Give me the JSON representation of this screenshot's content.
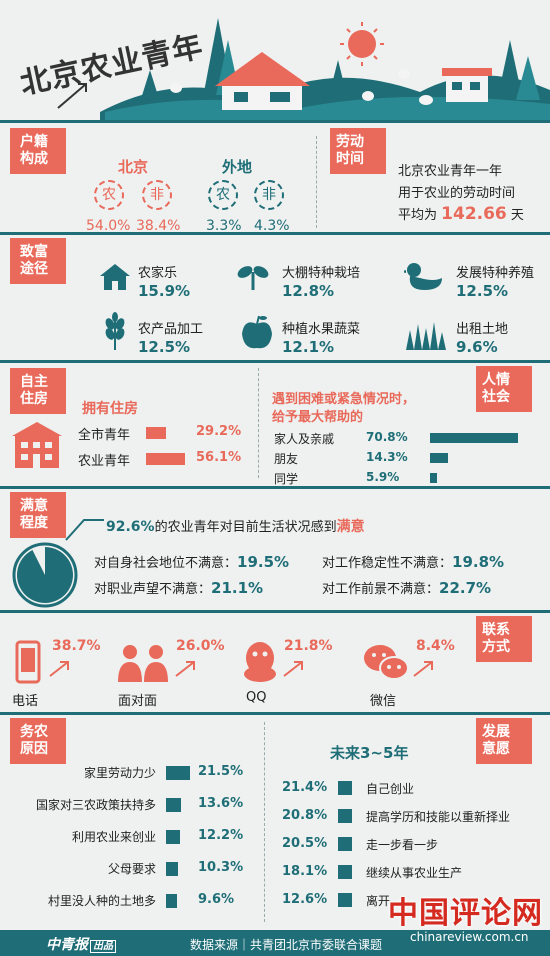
{
  "header": {
    "title": "北京农业青年"
  },
  "hukou": {
    "tag": "户籍\n构成",
    "beijing": {
      "label": "北京",
      "c1": "农",
      "c2": "非",
      "v1": "54.0%",
      "v2": "38.4%"
    },
    "waidi": {
      "label": "外地",
      "c1": "农",
      "c2": "非",
      "v1": "3.3%",
      "v2": "4.3%"
    }
  },
  "labor": {
    "tag": "劳动\n时间",
    "line1": "北京农业青年一年",
    "line2": "用于农业的劳动时间",
    "line3_pre": "平均为",
    "value": "142.66",
    "unit": "天"
  },
  "wealth": {
    "tag": "致富\n途径",
    "items": [
      {
        "label": "农家乐",
        "value": "15.9%"
      },
      {
        "label": "大棚特种栽培",
        "value": "12.8%"
      },
      {
        "label": "发展特种养殖",
        "value": "12.5%"
      },
      {
        "label": "农产品加工",
        "value": "12.5%"
      },
      {
        "label": "种植水果蔬菜",
        "value": "12.1%"
      },
      {
        "label": "出租土地",
        "value": "9.6%"
      }
    ]
  },
  "housing": {
    "tag": "自主\n住房",
    "title": "拥有住房",
    "rows": [
      {
        "label": "全市青年",
        "value": "29.2%",
        "frac": 0.292
      },
      {
        "label": "农业青年",
        "value": "56.1%",
        "frac": 0.561
      }
    ]
  },
  "social": {
    "tag": "人情\n社会",
    "title1": "遇到困难或紧急情况时，",
    "title2": "给予最大帮助的",
    "rows": [
      {
        "label": "家人及亲戚",
        "value": "70.8%",
        "frac": 0.708
      },
      {
        "label": "朋友",
        "value": "14.3%",
        "frac": 0.143
      },
      {
        "label": "同学",
        "value": "5.9%",
        "frac": 0.059
      }
    ]
  },
  "satisfaction": {
    "tag": "满意\n程度",
    "headline_pct": "92.6%",
    "headline_mid": "的农业青年对目前生活状况感到",
    "headline_end": "满意",
    "items": [
      {
        "label": "对自身社会地位不满意：",
        "value": "19.5%"
      },
      {
        "label": "对工作稳定性不满意：",
        "value": "19.8%"
      },
      {
        "label": "对职业声望不满意：",
        "value": "21.1%"
      },
      {
        "label": "对工作前景不满意：",
        "value": "22.7%"
      }
    ]
  },
  "contact": {
    "tag": "联系\n方式",
    "items": [
      {
        "label": "电话",
        "value": "38.7%"
      },
      {
        "label": "面对面",
        "value": "26.0%"
      },
      {
        "label": "QQ",
        "value": "21.8%"
      },
      {
        "label": "微信",
        "value": "8.4%"
      }
    ]
  },
  "reasons": {
    "tag": "务农\n原因",
    "rows": [
      {
        "label": "家里劳动力少",
        "value": "21.5%",
        "frac": 0.215
      },
      {
        "label": "国家对三农政策扶持多",
        "value": "13.6%",
        "frac": 0.136
      },
      {
        "label": "利用农业来创业",
        "value": "12.2%",
        "frac": 0.122
      },
      {
        "label": "父母要求",
        "value": "10.3%",
        "frac": 0.103
      },
      {
        "label": "村里没人种的土地多",
        "value": "9.6%",
        "frac": 0.096
      }
    ]
  },
  "future": {
    "tag": "发展\n意愿",
    "title": "未来3~5年",
    "rows": [
      {
        "label": "自己创业",
        "value": "21.4%"
      },
      {
        "label": "提高学历和技能以重新择业",
        "value": "20.8%"
      },
      {
        "label": "走一步看一步",
        "value": "20.5%"
      },
      {
        "label": "继续从事农业生产",
        "value": "18.1%"
      },
      {
        "label": "离开",
        "value": "12.6%"
      }
    ]
  },
  "footer": {
    "logo": "中青报",
    "logo_sub": "出品",
    "source": "数据来源｜共青团北京市委联合课题",
    "watermark": "中国评论网",
    "watermark_url": "chinareview.com.cn"
  }
}
